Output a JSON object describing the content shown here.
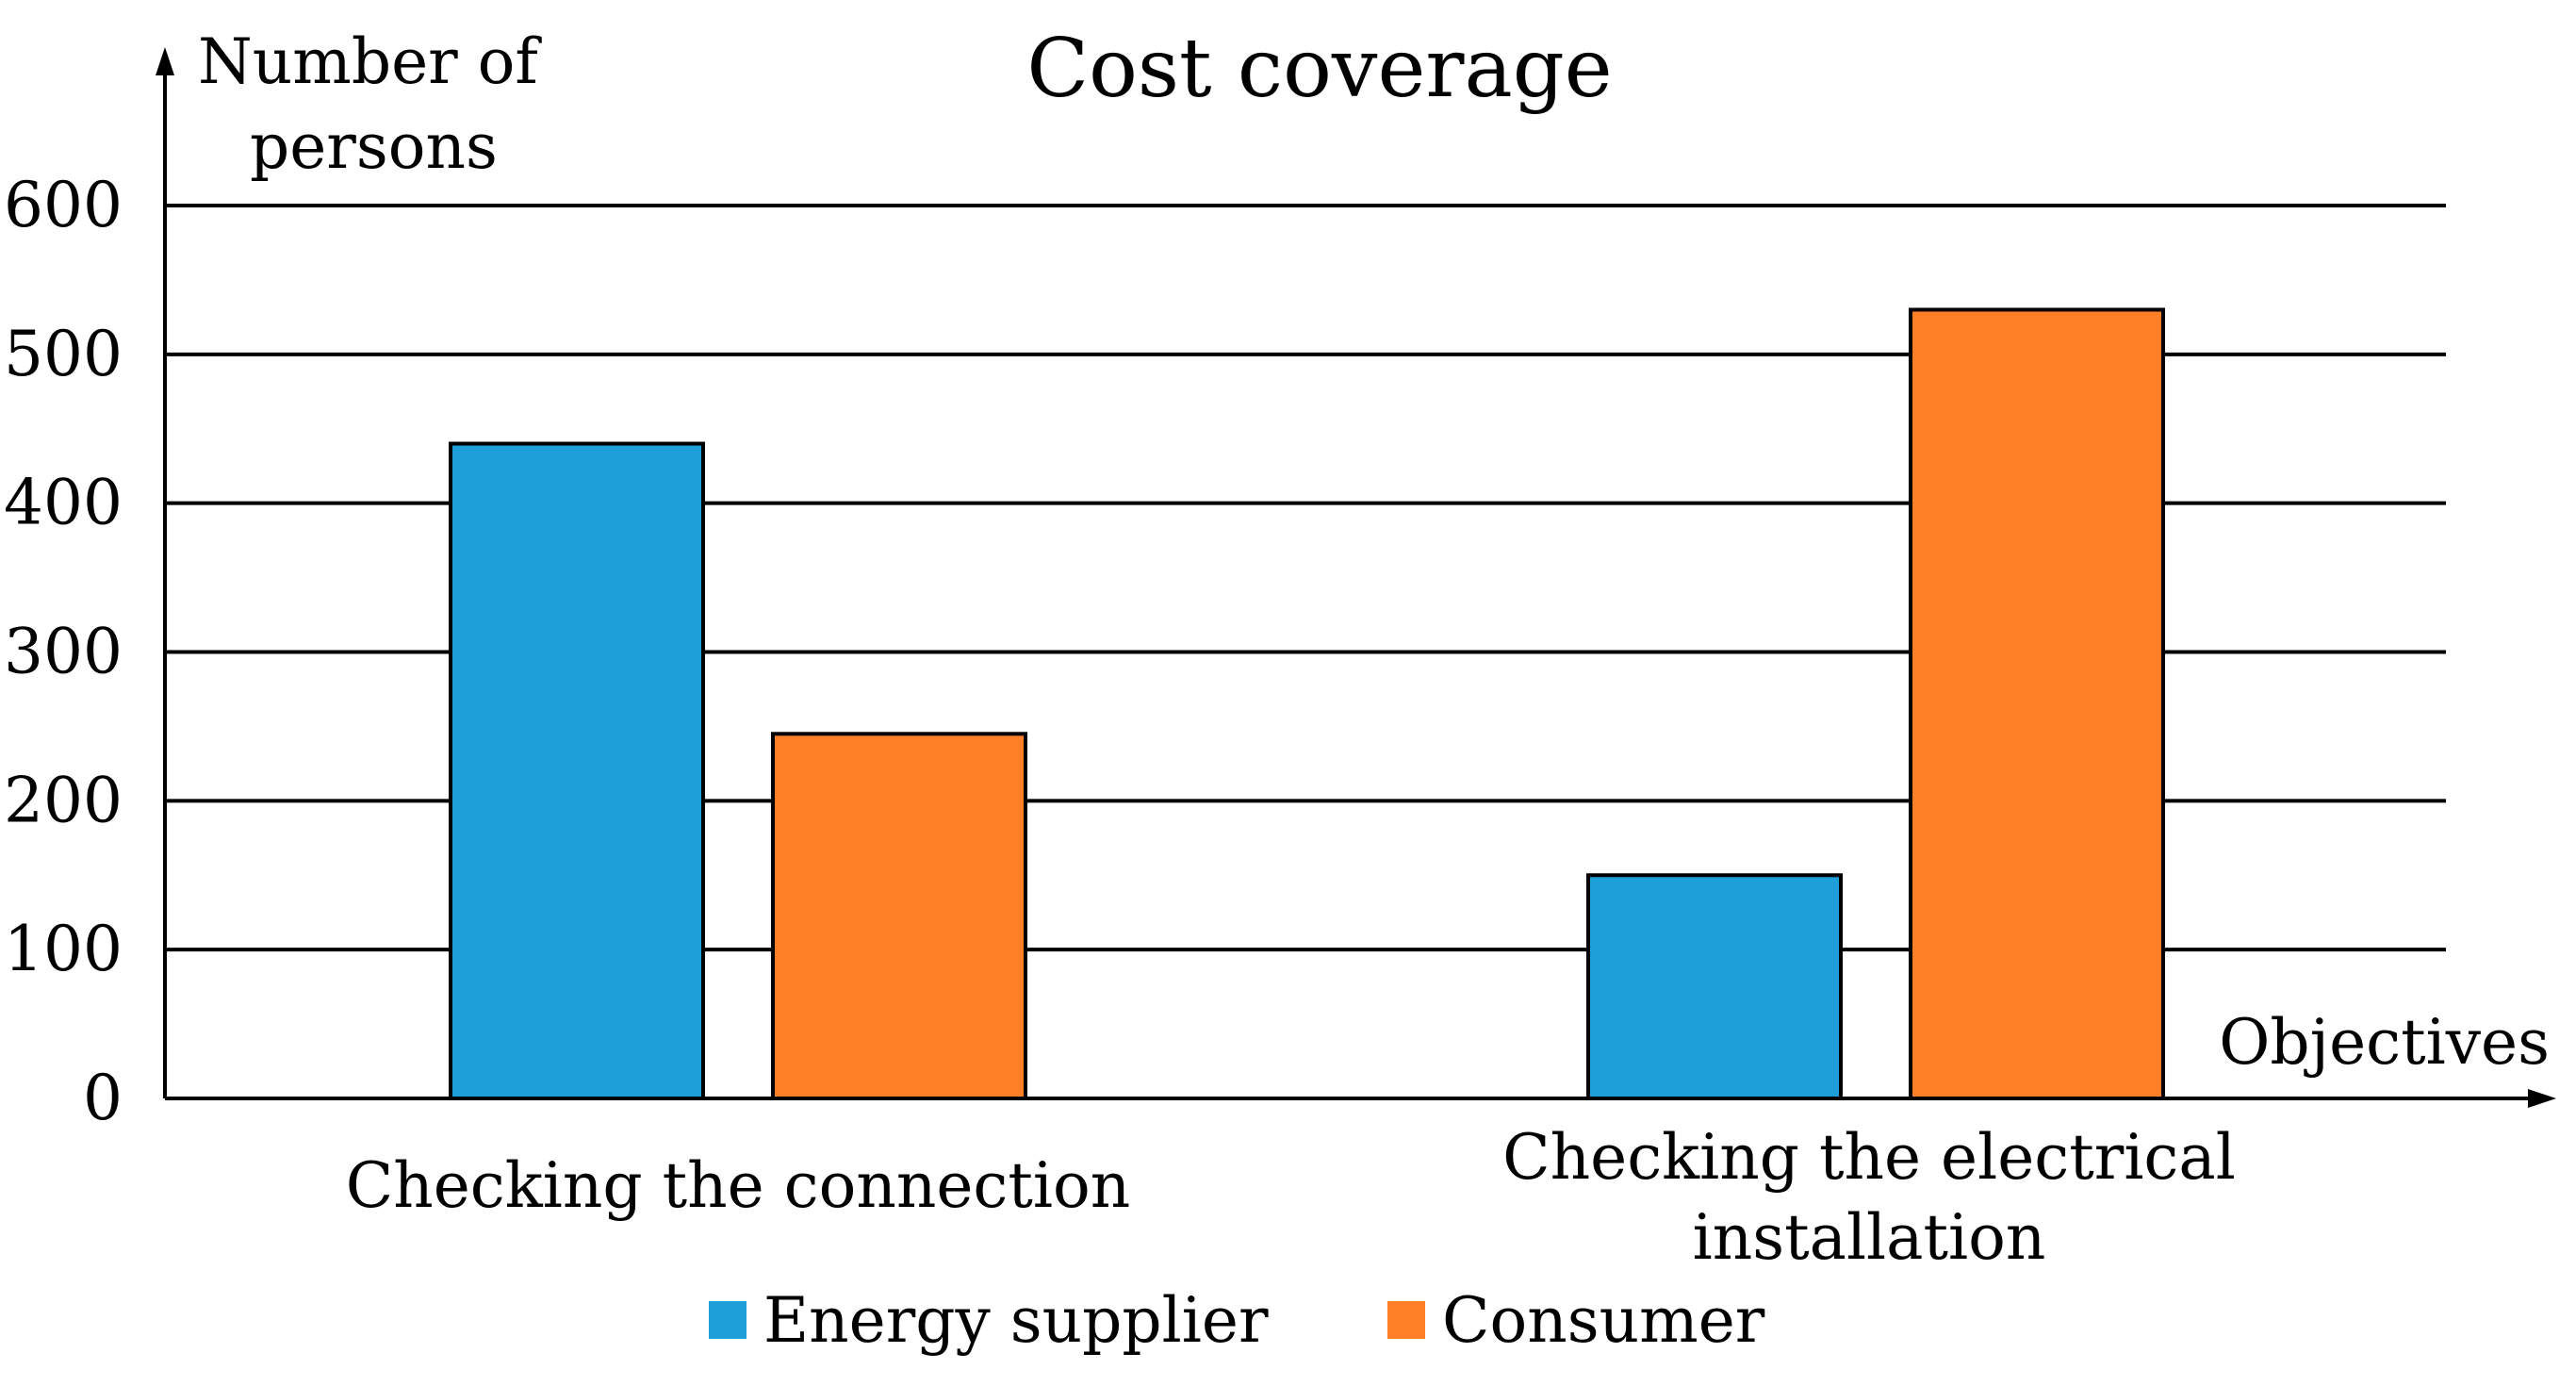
{
  "chart_data": {
    "type": "bar",
    "title": "Cost coverage",
    "ylabel_lines": [
      "Number of",
      "persons"
    ],
    "xlabel": "Objectives",
    "ylim": [
      0,
      600
    ],
    "yticks": [
      0,
      100,
      200,
      300,
      400,
      500,
      600
    ],
    "ytick_labels": [
      "0",
      "100",
      "200",
      "300",
      "400",
      "500",
      "600"
    ],
    "grid": true,
    "legend_position": "bottom-center",
    "categories": [
      {
        "name": "Checking the connection",
        "lines": [
          "Checking the connection"
        ]
      },
      {
        "name": "Checking the electrical installation",
        "lines": [
          "Checking the electrical",
          "installation"
        ]
      }
    ],
    "series": [
      {
        "name": "Energy supplier",
        "color": "#1E9FDA",
        "values": [
          440,
          150
        ]
      },
      {
        "name": "Consumer",
        "color": "#FF7F27",
        "values": [
          245,
          530
        ]
      }
    ]
  }
}
